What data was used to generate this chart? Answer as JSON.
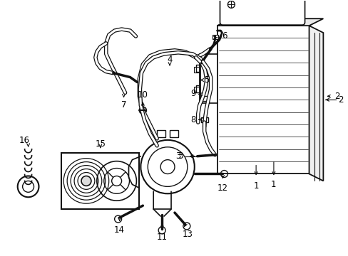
{
  "bg_color": "#ffffff",
  "line_color": "#111111",
  "fig_width": 4.89,
  "fig_height": 3.6,
  "dpi": 100
}
